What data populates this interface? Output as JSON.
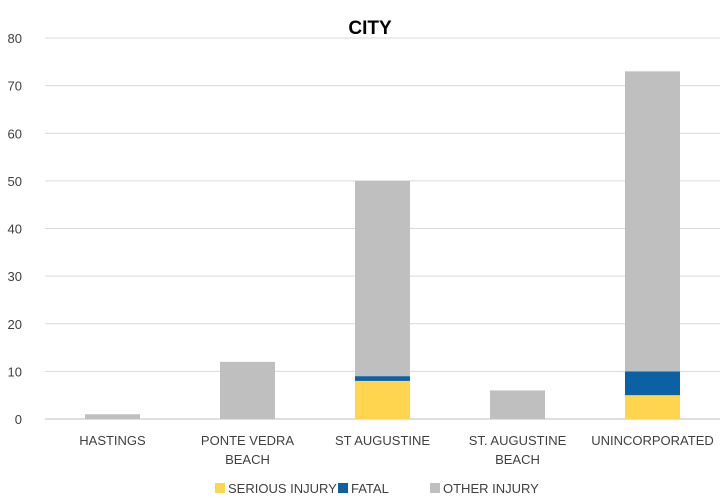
{
  "chart_data": {
    "type": "bar",
    "stacked": true,
    "title": "CITY",
    "categories": [
      [
        "HASTINGS"
      ],
      [
        "PONTE VEDRA",
        "BEACH"
      ],
      [
        "ST AUGUSTINE"
      ],
      [
        "ST. AUGUSTINE",
        "BEACH"
      ],
      [
        "UNINCORPORATED"
      ]
    ],
    "series": [
      {
        "name": "SERIOUS INJURY",
        "color": "#ffd54f",
        "values": [
          0,
          0,
          8,
          0,
          5
        ]
      },
      {
        "name": "FATAL",
        "color": "#0b61a4",
        "values": [
          0,
          0,
          1,
          0,
          5
        ]
      },
      {
        "name": "OTHER INJURY",
        "color": "#bfbfbf",
        "values": [
          1,
          12,
          41,
          6,
          63
        ]
      }
    ],
    "ylim": [
      0,
      80
    ],
    "yticks": [
      0,
      10,
      20,
      30,
      40,
      50,
      60,
      70,
      80
    ],
    "grid": true,
    "legend_position": "bottom"
  }
}
